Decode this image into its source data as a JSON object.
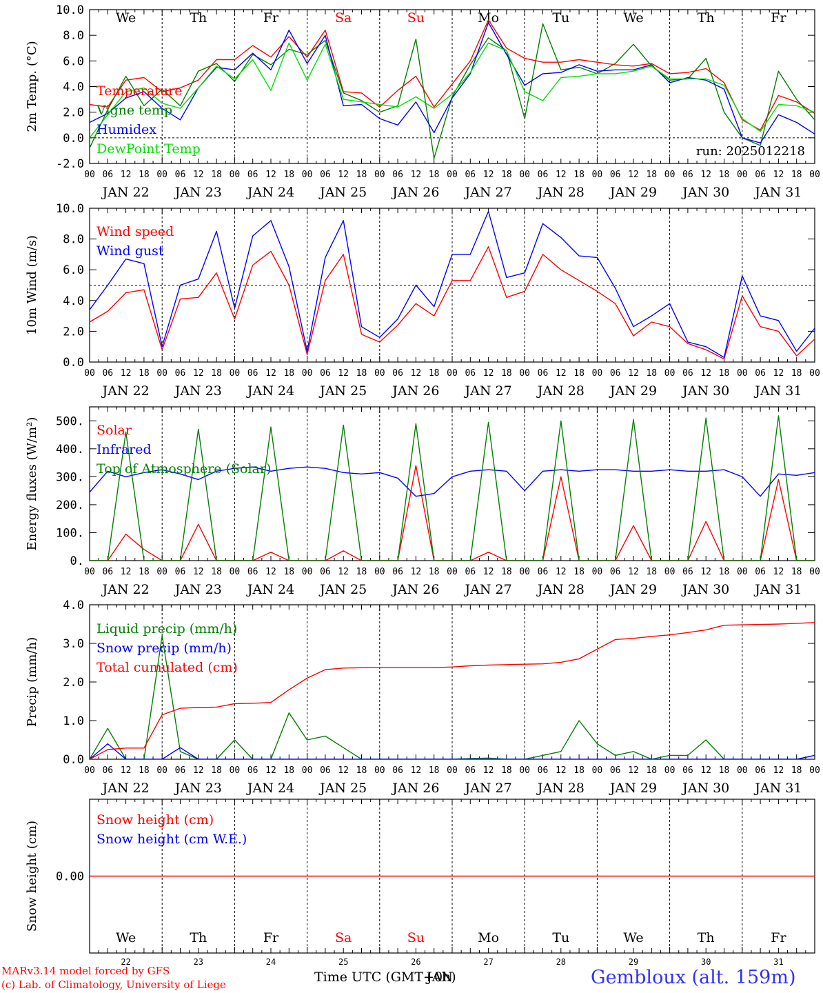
{
  "footer": {
    "model": "MARv3.14 model forced by GFS",
    "copyright": "(c) Lab. of Climatology, University of Liege",
    "xlabel": "Time UTC (GMT+0h)",
    "station": "Gembloux (alt. 159m)",
    "overlap_label": "JAN"
  },
  "colors": {
    "red": "#ff0000",
    "green": "#008000",
    "blue": "#0000ff",
    "lightgreen": "#00e000",
    "grid": "#000000"
  },
  "days": {
    "weekday_labels": [
      "We",
      "Th",
      "Fr",
      "Sa",
      "Su",
      "Mo",
      "Tu",
      "We",
      "Th",
      "Fr"
    ],
    "weekend_flags": [
      false,
      false,
      false,
      true,
      true,
      false,
      false,
      false,
      false,
      false
    ],
    "date_labels": [
      "JAN 22",
      "JAN 23",
      "JAN 24",
      "JAN 25",
      "JAN 26",
      "JAN 27",
      "JAN 28",
      "JAN 29",
      "JAN 30",
      "JAN 31"
    ],
    "day_numbers": [
      "22",
      "23",
      "24",
      "25",
      "26",
      "27",
      "28",
      "29",
      "30",
      "31"
    ],
    "hour_labels": [
      "00",
      "06",
      "12",
      "18"
    ],
    "end_hour_label": "00"
  },
  "chart_data": [
    {
      "type": "line",
      "ylabel": "2m Temp. (°C)",
      "ylim": [
        -2,
        10
      ],
      "yticks": [
        "-2.0",
        "0.0",
        "2.0",
        "4.0",
        "6.0",
        "8.0",
        "10.0"
      ],
      "reference_line": 0,
      "annotation": "run: 2025012218",
      "x_hours": [
        0,
        6,
        12,
        18,
        24,
        30,
        36,
        42,
        48,
        54,
        60,
        66,
        72,
        78,
        84,
        90,
        96,
        102,
        108,
        114,
        120,
        126,
        132,
        138,
        144,
        150,
        156,
        162,
        168,
        174,
        180,
        186,
        192,
        198,
        204,
        210,
        216,
        222,
        228,
        234,
        240
      ],
      "series": [
        {
          "name": "Temperature",
          "color": "red",
          "values": [
            2.6,
            2.4,
            4.5,
            4.7,
            3.6,
            3.9,
            4.5,
            6.1,
            6.1,
            7.2,
            6.3,
            7.9,
            6.3,
            8.4,
            3.6,
            3.5,
            2.4,
            3.7,
            4.8,
            2.4,
            4.2,
            6.0,
            9.2,
            7.0,
            6.2,
            5.9,
            5.9,
            6.1,
            5.9,
            5.7,
            5.6,
            5.8,
            5.0,
            5.1,
            5.4,
            4.3,
            1.4,
            0.6,
            3.3,
            2.8,
            1.9
          ]
        },
        {
          "name": "Vigne temp",
          "color": "green",
          "values": [
            -0.8,
            2.2,
            4.8,
            2.5,
            3.8,
            2.5,
            5.2,
            5.8,
            4.4,
            6.5,
            5.7,
            6.9,
            6.5,
            7.6,
            3.5,
            2.9,
            2.0,
            2.5,
            7.7,
            -1.6,
            3.2,
            5.7,
            7.8,
            6.8,
            1.5,
            8.9,
            5.3,
            5.5,
            5.0,
            5.8,
            7.3,
            5.6,
            4.5,
            4.6,
            6.2,
            2.0,
            0.0,
            -0.6,
            5.2,
            3.0,
            1.4
          ]
        },
        {
          "name": "Humidex",
          "color": "blue",
          "values": [
            1.2,
            1.9,
            3.1,
            3.6,
            2.3,
            1.4,
            3.9,
            5.5,
            5.3,
            6.6,
            5.3,
            8.4,
            5.8,
            8.0,
            2.5,
            2.6,
            1.5,
            1.0,
            2.8,
            0.4,
            3.1,
            5.0,
            9.0,
            6.5,
            4.1,
            5.0,
            5.1,
            5.7,
            5.2,
            5.3,
            5.3,
            5.7,
            4.3,
            4.7,
            4.5,
            3.8,
            0.0,
            -0.4,
            1.8,
            1.2,
            0.3
          ]
        },
        {
          "name": "DewPoint Temp",
          "color": "lightgreen",
          "values": [
            0.0,
            1.8,
            3.6,
            3.9,
            2.7,
            2.3,
            3.9,
            5.6,
            4.6,
            6.1,
            3.7,
            7.4,
            4.5,
            7.3,
            3.0,
            2.8,
            2.6,
            2.4,
            3.2,
            2.3,
            3.4,
            5.1,
            7.4,
            6.8,
            3.6,
            2.9,
            4.7,
            4.8,
            5.0,
            5.0,
            5.2,
            5.6,
            4.6,
            4.6,
            4.6,
            4.1,
            1.5,
            0.5,
            2.6,
            2.5,
            2.0
          ]
        }
      ]
    },
    {
      "type": "line",
      "ylabel": "10m Wind (m/s)",
      "ylim": [
        0,
        10
      ],
      "yticks": [
        "0.0",
        "2.0",
        "4.0",
        "6.0",
        "8.0",
        "10.0"
      ],
      "reference_line": 5,
      "x_hours": [
        0,
        6,
        12,
        18,
        24,
        30,
        36,
        42,
        48,
        54,
        60,
        66,
        72,
        78,
        84,
        90,
        96,
        102,
        108,
        114,
        120,
        126,
        132,
        138,
        144,
        150,
        156,
        162,
        168,
        174,
        180,
        186,
        192,
        198,
        204,
        210,
        216,
        222,
        228,
        234,
        240
      ],
      "series": [
        {
          "name": "Wind speed",
          "color": "red",
          "values": [
            2.6,
            3.3,
            4.5,
            4.7,
            0.8,
            4.1,
            4.2,
            5.8,
            2.8,
            6.3,
            7.2,
            5.0,
            0.5,
            5.3,
            7.0,
            1.8,
            1.3,
            2.4,
            3.8,
            3.0,
            5.3,
            5.3,
            7.5,
            4.2,
            4.6,
            7.0,
            6.0,
            5.3,
            4.6,
            3.8,
            1.7,
            2.6,
            2.3,
            1.2,
            0.8,
            0.2,
            4.3,
            2.3,
            2.0,
            0.4,
            1.5
          ]
        },
        {
          "name": "Wind gust",
          "color": "blue",
          "values": [
            3.4,
            5.0,
            6.7,
            6.4,
            1.0,
            5.0,
            5.4,
            8.5,
            3.5,
            8.2,
            9.2,
            6.2,
            0.7,
            6.8,
            9.2,
            2.3,
            1.6,
            2.8,
            5.0,
            3.6,
            7.0,
            7.0,
            9.8,
            5.5,
            5.8,
            9.0,
            8.1,
            6.9,
            6.8,
            4.8,
            2.3,
            3.0,
            3.8,
            1.3,
            1.0,
            0.3,
            5.6,
            3.0,
            2.7,
            0.7,
            2.2
          ]
        }
      ]
    },
    {
      "type": "line",
      "ylabel": "Energy fluxes (W/m²)",
      "ylim": [
        0,
        550
      ],
      "yticks": [
        "0.",
        "100.",
        "200.",
        "300.",
        "400.",
        "500."
      ],
      "x_hours": [
        0,
        6,
        12,
        18,
        24,
        30,
        36,
        42,
        48,
        54,
        60,
        66,
        72,
        78,
        84,
        90,
        96,
        102,
        108,
        114,
        120,
        126,
        132,
        138,
        144,
        150,
        156,
        162,
        168,
        174,
        180,
        186,
        192,
        198,
        204,
        210,
        216,
        222,
        228,
        234,
        240
      ],
      "series": [
        {
          "name": "Solar",
          "color": "red",
          "values": [
            0,
            0,
            95,
            40,
            0,
            0,
            130,
            0,
            0,
            0,
            30,
            0,
            0,
            0,
            35,
            0,
            0,
            0,
            340,
            0,
            0,
            0,
            30,
            0,
            0,
            0,
            300,
            0,
            0,
            0,
            125,
            0,
            0,
            0,
            140,
            0,
            0,
            0,
            290,
            0,
            0
          ]
        },
        {
          "name": "Infrared",
          "color": "blue",
          "values": [
            245,
            320,
            300,
            315,
            325,
            310,
            290,
            320,
            330,
            335,
            320,
            330,
            335,
            330,
            315,
            310,
            315,
            295,
            230,
            240,
            300,
            320,
            325,
            320,
            250,
            320,
            325,
            320,
            325,
            325,
            320,
            320,
            325,
            320,
            320,
            325,
            300,
            230,
            310,
            305,
            315
          ]
        },
        {
          "name": "Top of Atmosphere (Solar)",
          "color": "green",
          "values": [
            0,
            0,
            460,
            0,
            0,
            0,
            470,
            0,
            0,
            0,
            478,
            0,
            0,
            0,
            485,
            0,
            0,
            0,
            490,
            0,
            0,
            0,
            495,
            0,
            0,
            0,
            500,
            0,
            0,
            0,
            505,
            0,
            0,
            0,
            510,
            0,
            0,
            0,
            518,
            0,
            0
          ]
        }
      ]
    },
    {
      "type": "line",
      "ylabel": "Precip (mm/h)",
      "ylim": [
        0,
        4
      ],
      "yticks": [
        "0.0",
        "1.0",
        "2.0",
        "3.0",
        "4.0"
      ],
      "x_hours": [
        0,
        6,
        12,
        18,
        24,
        30,
        36,
        42,
        48,
        54,
        60,
        66,
        72,
        78,
        84,
        90,
        96,
        102,
        108,
        114,
        120,
        126,
        132,
        138,
        144,
        150,
        156,
        162,
        168,
        174,
        180,
        186,
        192,
        198,
        204,
        210,
        216,
        222,
        228,
        234,
        240
      ],
      "series": [
        {
          "name": "Liquid precip (mm/h)",
          "color": "green",
          "values": [
            0,
            0.8,
            0,
            0,
            3.2,
            0.2,
            0,
            0,
            0.5,
            0,
            0,
            1.2,
            0.5,
            0.6,
            0.3,
            0,
            0,
            0,
            0,
            0,
            0,
            0.02,
            0.03,
            0,
            0,
            0.1,
            0.2,
            1.0,
            0.4,
            0.1,
            0.2,
            0,
            0.1,
            0.1,
            0.5,
            0,
            0,
            0,
            0,
            0,
            0.1
          ]
        },
        {
          "name": "Snow precip (mm/h)",
          "color": "blue",
          "values": [
            0,
            0.4,
            0,
            0,
            0,
            0.3,
            0,
            0,
            0,
            0,
            0,
            0,
            0,
            0,
            0,
            0,
            0,
            0,
            0,
            0,
            0,
            0,
            0,
            0,
            0,
            0,
            0,
            0,
            0,
            0,
            0,
            0,
            0,
            0,
            0,
            0,
            0,
            0,
            0,
            0,
            0.1
          ]
        },
        {
          "name": "Total cumulated (cm)",
          "color": "red",
          "values": [
            0,
            0.25,
            0.29,
            0.29,
            1.15,
            1.32,
            1.34,
            1.35,
            1.44,
            1.45,
            1.47,
            1.8,
            2.1,
            2.32,
            2.36,
            2.37,
            2.37,
            2.37,
            2.37,
            2.37,
            2.39,
            2.42,
            2.44,
            2.45,
            2.46,
            2.47,
            2.51,
            2.6,
            2.85,
            3.1,
            3.13,
            3.18,
            3.22,
            3.28,
            3.35,
            3.47,
            3.48,
            3.49,
            3.5,
            3.52,
            3.54
          ]
        }
      ]
    },
    {
      "type": "line",
      "ylabel": "Snow height (cm)",
      "yticks": [
        "0.00"
      ],
      "x_hours": [
        0,
        240
      ],
      "series": [
        {
          "name": "Snow height (cm)",
          "color": "red",
          "values": [
            0,
            0
          ]
        },
        {
          "name": "Snow height (cm W.E.)",
          "color": "blue",
          "values": [
            0,
            0
          ]
        }
      ]
    }
  ]
}
